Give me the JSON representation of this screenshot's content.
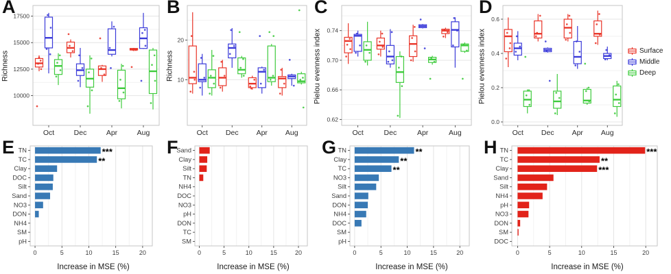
{
  "legend": {
    "items": [
      {
        "label": "Surface",
        "color": "#e93529"
      },
      {
        "label": "Middle",
        "color": "#3a3ad9"
      },
      {
        "label": "Deep",
        "color": "#3ecb3c"
      }
    ]
  },
  "chart_data": [
    {
      "id": "A",
      "type": "boxplot",
      "label": "A",
      "ylabel": "Richness",
      "categories": [
        "Oct",
        "Dec",
        "Apr",
        "Aug"
      ],
      "ylim": [
        7200,
        18500
      ],
      "yticks": [
        10000,
        12500,
        15000,
        17500
      ],
      "ytick_labels": [
        "10000",
        "12500",
        "15000",
        "17500"
      ],
      "series": [
        {
          "name": "Surface",
          "color": "#e93529",
          "boxes": [
            [
              12300,
              12700,
              13050,
              13500,
              13800
            ],
            [
              13600,
              14050,
              14500,
              15050,
              15300
            ],
            [
              11300,
              11900,
              12500,
              12800,
              12900
            ],
            [
              14200,
              14300,
              14350,
              14450,
              14500
            ]
          ],
          "points": [
            [
              9000,
              12500,
              13000,
              13300,
              13600
            ],
            [
              15800,
              14200,
              14700
            ],
            [
              15400,
              12000,
              12600
            ],
            [
              12700,
              14300,
              14330,
              14370,
              14400
            ]
          ]
        },
        {
          "name": "Middle",
          "color": "#3a3ad9",
          "boxes": [
            [
              12100,
              14500,
              15450,
              17400,
              17800
            ],
            [
              10800,
              11900,
              12400,
              13000,
              14500
            ],
            [
              13700,
              13900,
              14300,
              16300,
              17000
            ],
            [
              14400,
              14450,
              15400,
              16400,
              17800
            ]
          ],
          "points": [
            [
              14400,
              16400,
              17600,
              13900
            ],
            [
              11400,
              12600,
              13800
            ],
            [
              14500,
              16500,
              12600
            ],
            [
              11400,
              14700,
              15900,
              16200
            ]
          ]
        },
        {
          "name": "Deep",
          "color": "#3ecb3c",
          "boxes": [
            [
              11000,
              12000,
              12800,
              13400,
              14000
            ],
            [
              8300,
              10800,
              11600,
              12500,
              13800
            ],
            [
              8800,
              9700,
              10700,
              12400,
              13000
            ],
            [
              8700,
              10200,
              12300,
              14300,
              14500
            ]
          ],
          "points": [
            [
              11800,
              12400,
              13100,
              13800
            ],
            [
              9000,
              10500,
              12200,
              13500
            ],
            [
              9500,
              10300,
              11500,
              12800
            ],
            [
              9300,
              11400,
              12900,
              13800
            ]
          ]
        }
      ]
    },
    {
      "id": "B",
      "type": "boxplot",
      "label": "B",
      "ylabel": "Richness",
      "categories": [
        "Oct",
        "Dec",
        "Apr",
        "Aug"
      ],
      "ylim": [
        -1.5,
        28.7
      ],
      "yticks": [
        10,
        20
      ],
      "ytick_labels": [
        "10",
        "20"
      ],
      "series": [
        {
          "name": "Surface",
          "color": "#e93529",
          "boxes": [
            [
              6.5,
              9,
              10.5,
              18.5,
              27
            ],
            [
              7,
              8.5,
              10.5,
              13,
              15
            ],
            [
              7.5,
              8,
              9,
              10.5,
              11
            ],
            [
              6,
              8,
              10.3,
              10.8,
              13
            ]
          ],
          "points": [
            [
              7,
              10,
              21,
              12
            ],
            [
              8,
              11,
              14.5
            ],
            [
              8.3,
              10,
              7.8
            ],
            [
              6.5,
              9,
              12.5
            ]
          ]
        },
        {
          "name": "Middle",
          "color": "#3a3ad9",
          "boxes": [
            [
              6,
              9.5,
              10,
              14,
              16.5
            ],
            [
              13,
              15.5,
              18,
              19,
              23
            ],
            [
              6.5,
              8,
              12,
              13,
              13.3
            ],
            [
              8.5,
              10.3,
              10.8,
              11.2,
              11.5
            ]
          ],
          "points": [
            [
              8,
              10.5,
              15.5
            ],
            [
              16.5,
              18.5,
              22.5
            ],
            [
              21,
              12.5,
              9
            ],
            [
              15,
              8.5
            ]
          ]
        },
        {
          "name": "Deep",
          "color": "#3ecb3c",
          "boxes": [
            [
              6,
              8,
              10.5,
              12.5,
              17.5
            ],
            [
              10.5,
              11.5,
              12.5,
              15.5,
              16
            ],
            [
              8.5,
              9.5,
              10.5,
              18.5,
              19
            ],
            [
              8.8,
              9.2,
              9.6,
              11.5,
              12
            ]
          ],
          "points": [
            [
              6.5,
              9,
              11,
              16
            ],
            [
              22,
              11,
              13,
              15.2
            ],
            [
              22,
              21,
              10,
              11
            ],
            [
              27.5,
              3,
              10,
              10.5
            ]
          ]
        }
      ]
    },
    {
      "id": "C",
      "type": "boxplot",
      "label": "C",
      "ylabel": "Pielou evenness index",
      "categories": [
        "Oct",
        "Dec",
        "Apr",
        "Aug"
      ],
      "ylim": [
        0.612,
        0.774
      ],
      "yticks": [
        0.62,
        0.66,
        0.7,
        0.74
      ],
      "ytick_labels": [
        "0.62",
        "0.66",
        "0.70",
        "0.74"
      ],
      "series": [
        {
          "name": "Surface",
          "color": "#e93529",
          "boxes": [
            [
              0.695,
              0.71,
              0.726,
              0.731,
              0.75
            ],
            [
              0.705,
              0.715,
              0.72,
              0.73,
              0.74
            ],
            [
              0.698,
              0.705,
              0.722,
              0.733,
              0.748
            ],
            [
              0.73,
              0.736,
              0.74,
              0.742,
              0.744
            ]
          ],
          "points": [
            [
              0.705,
              0.715,
              0.721,
              0.729
            ],
            [
              0.708,
              0.718,
              0.725,
              0.736
            ],
            [
              0.7,
              0.712,
              0.73,
              0.745
            ],
            [
              0.732,
              0.738,
              0.741
            ]
          ]
        },
        {
          "name": "Middle",
          "color": "#3a3ad9",
          "boxes": [
            [
              0.705,
              0.712,
              0.733,
              0.735,
              0.74
            ],
            [
              0.69,
              0.695,
              0.705,
              0.72,
              0.742
            ],
            [
              0.743,
              0.744,
              0.746,
              0.748,
              0.749
            ],
            [
              0.69,
              0.718,
              0.741,
              0.752,
              0.758
            ]
          ],
          "points": [
            [
              0.71,
              0.72,
              0.736
            ],
            [
              0.698,
              0.7,
              0.712,
              0.738
            ],
            [
              0.755,
              0.716
            ],
            [
              0.72,
              0.74,
              0.757
            ]
          ]
        },
        {
          "name": "Deep",
          "color": "#3ecb3c",
          "boxes": [
            [
              0.693,
              0.7,
              0.714,
              0.725,
              0.752
            ],
            [
              0.622,
              0.67,
              0.684,
              0.705,
              0.712
            ],
            [
              0.694,
              0.697,
              0.701,
              0.704,
              0.706
            ],
            [
              0.71,
              0.712,
              0.72,
              0.722,
              0.724
            ]
          ],
          "points": [
            [
              0.698,
              0.71,
              0.72
            ],
            [
              0.625,
              0.665,
              0.69,
              0.705
            ],
            [
              0.675,
              0.698,
              0.703
            ],
            [
              0.675,
              0.713,
              0.721
            ]
          ]
        }
      ]
    },
    {
      "id": "D",
      "type": "boxplot",
      "label": "D",
      "ylabel": "Pielou evenness index",
      "categories": [
        "Oct",
        "Dec",
        "Apr",
        "Aug"
      ],
      "ylim": [
        -0.02,
        0.68
      ],
      "yticks": [
        0.0,
        0.2,
        0.4,
        0.6
      ],
      "ytick_labels": [
        "0.0",
        "0.2",
        "0.4",
        "0.6"
      ],
      "series": [
        {
          "name": "Surface",
          "color": "#e93529",
          "boxes": [
            [
              0.32,
              0.41,
              0.5,
              0.54,
              0.61
            ],
            [
              0.47,
              0.49,
              0.515,
              0.59,
              0.63
            ],
            [
              0.47,
              0.49,
              0.55,
              0.6,
              0.63
            ],
            [
              0.45,
              0.5,
              0.515,
              0.59,
              0.65
            ]
          ],
          "points": [
            [
              0.37,
              0.46,
              0.52,
              0.43
            ],
            [
              0.5,
              0.62,
              0.52
            ],
            [
              0.48,
              0.52,
              0.57,
              0.62
            ],
            [
              0.46,
              0.51,
              0.57,
              0.63
            ]
          ]
        },
        {
          "name": "Middle",
          "color": "#3a3ad9",
          "boxes": [
            [
              0.36,
              0.39,
              0.43,
              0.46,
              0.53
            ],
            [
              0.405,
              0.41,
              0.42,
              0.43,
              0.435
            ],
            [
              0.31,
              0.34,
              0.38,
              0.47,
              0.56
            ],
            [
              0.36,
              0.37,
              0.385,
              0.4,
              0.44
            ]
          ],
          "points": [
            [
              0.41,
              0.44,
              0.5
            ],
            [
              0.47,
              0.24,
              0.415
            ],
            [
              0.33,
              0.41,
              0.47
            ],
            [
              0.365,
              0.39,
              0.42
            ]
          ]
        },
        {
          "name": "Deep",
          "color": "#3ecb3c",
          "boxes": [
            [
              0.05,
              0.09,
              0.13,
              0.18,
              0.19
            ],
            [
              0.04,
              0.08,
              0.12,
              0.18,
              0.28
            ],
            [
              0.1,
              0.11,
              0.125,
              0.19,
              0.2
            ],
            [
              0.03,
              0.09,
              0.13,
              0.21,
              0.24
            ]
          ],
          "points": [
            [
              0.38,
              0.1,
              0.155,
              0.185
            ],
            [
              0.05,
              0.14,
              0.17
            ],
            [
              0.34,
              0.12,
              0.18,
              0.2
            ],
            [
              0.05,
              0.11,
              0.16,
              0.22
            ]
          ]
        }
      ]
    },
    {
      "id": "E",
      "type": "bar",
      "label": "E",
      "color": "#3879b5",
      "xlabel": "Increase in MSE (%)",
      "xlim": [
        -0.9,
        21.8
      ],
      "xticks": [
        0,
        5,
        10,
        15,
        20
      ],
      "xtick_labels": [
        "0",
        "5",
        "10",
        "15",
        "20"
      ],
      "categories": [
        "TN",
        "TC",
        "Clay",
        "DOC",
        "Silt",
        "Sand",
        "NO3",
        "DON",
        "NH4",
        "SM",
        "pH"
      ],
      "values": [
        12.2,
        11.5,
        4.1,
        3.4,
        3.3,
        2.8,
        1.5,
        0.7,
        0.05,
        0.03,
        0.02
      ],
      "sig": [
        "***",
        "**",
        "",
        "",
        "",
        "",
        "",
        "",
        "",
        "",
        ""
      ]
    },
    {
      "id": "F",
      "type": "bar",
      "label": "F",
      "color": "#e2231a",
      "xlabel": "Increase in MSE (%)",
      "xlim": [
        -0.9,
        21.8
      ],
      "xticks": [
        0,
        5,
        10,
        15,
        20
      ],
      "xtick_labels": [
        "0",
        "5",
        "10",
        "15",
        "20"
      ],
      "categories": [
        "Sand",
        "Clay",
        "Silt",
        "TN",
        "NH4",
        "DOC",
        "NO3",
        "pH",
        "DON",
        "TC",
        "SM"
      ],
      "values": [
        2.1,
        1.6,
        1.5,
        0.8,
        0,
        0,
        0,
        0,
        0,
        0,
        0
      ],
      "sig": [
        "",
        "",
        "",
        "",
        "",
        "",
        "",
        "",
        "",
        "",
        ""
      ]
    },
    {
      "id": "G",
      "type": "bar",
      "label": "G",
      "color": "#3879b5",
      "xlabel": "Increase in MSE (%)",
      "xlim": [
        -0.9,
        21.8
      ],
      "xticks": [
        0,
        5,
        10,
        15,
        20
      ],
      "xtick_labels": [
        "0",
        "5",
        "10",
        "15",
        "20"
      ],
      "categories": [
        "TN",
        "Clay",
        "TC",
        "NO3",
        "Silt",
        "Sand",
        "DON",
        "NH4",
        "DOC",
        "SM",
        "pH"
      ],
      "values": [
        11.3,
        8.4,
        7.0,
        4.6,
        4.1,
        2.6,
        2.5,
        2.2,
        1.3,
        0.04,
        0.02
      ],
      "sig": [
        "**",
        "**",
        "**",
        "",
        "",
        "",
        "",
        "",
        "",
        "",
        ""
      ]
    },
    {
      "id": "H",
      "type": "bar",
      "label": "H",
      "color": "#e2231a",
      "xlabel": "Increase in MSE (%)",
      "xlim": [
        -0.9,
        21.8
      ],
      "xticks": [
        0,
        5,
        10,
        15,
        20
      ],
      "xtick_labels": [
        "0",
        "5",
        "10",
        "15",
        "20"
      ],
      "categories": [
        "TN",
        "TC",
        "Clay",
        "Sand",
        "Silt",
        "NH4",
        "pH",
        "NO3",
        "DON",
        "SM",
        "DOC"
      ],
      "values": [
        19.9,
        12.8,
        12.4,
        5.6,
        4.6,
        3.9,
        1.8,
        1.7,
        0.4,
        0.15,
        0.02
      ],
      "sig": [
        "***",
        "**",
        "***",
        "",
        "",
        "",
        "",
        "",
        "",
        "",
        ""
      ]
    }
  ]
}
